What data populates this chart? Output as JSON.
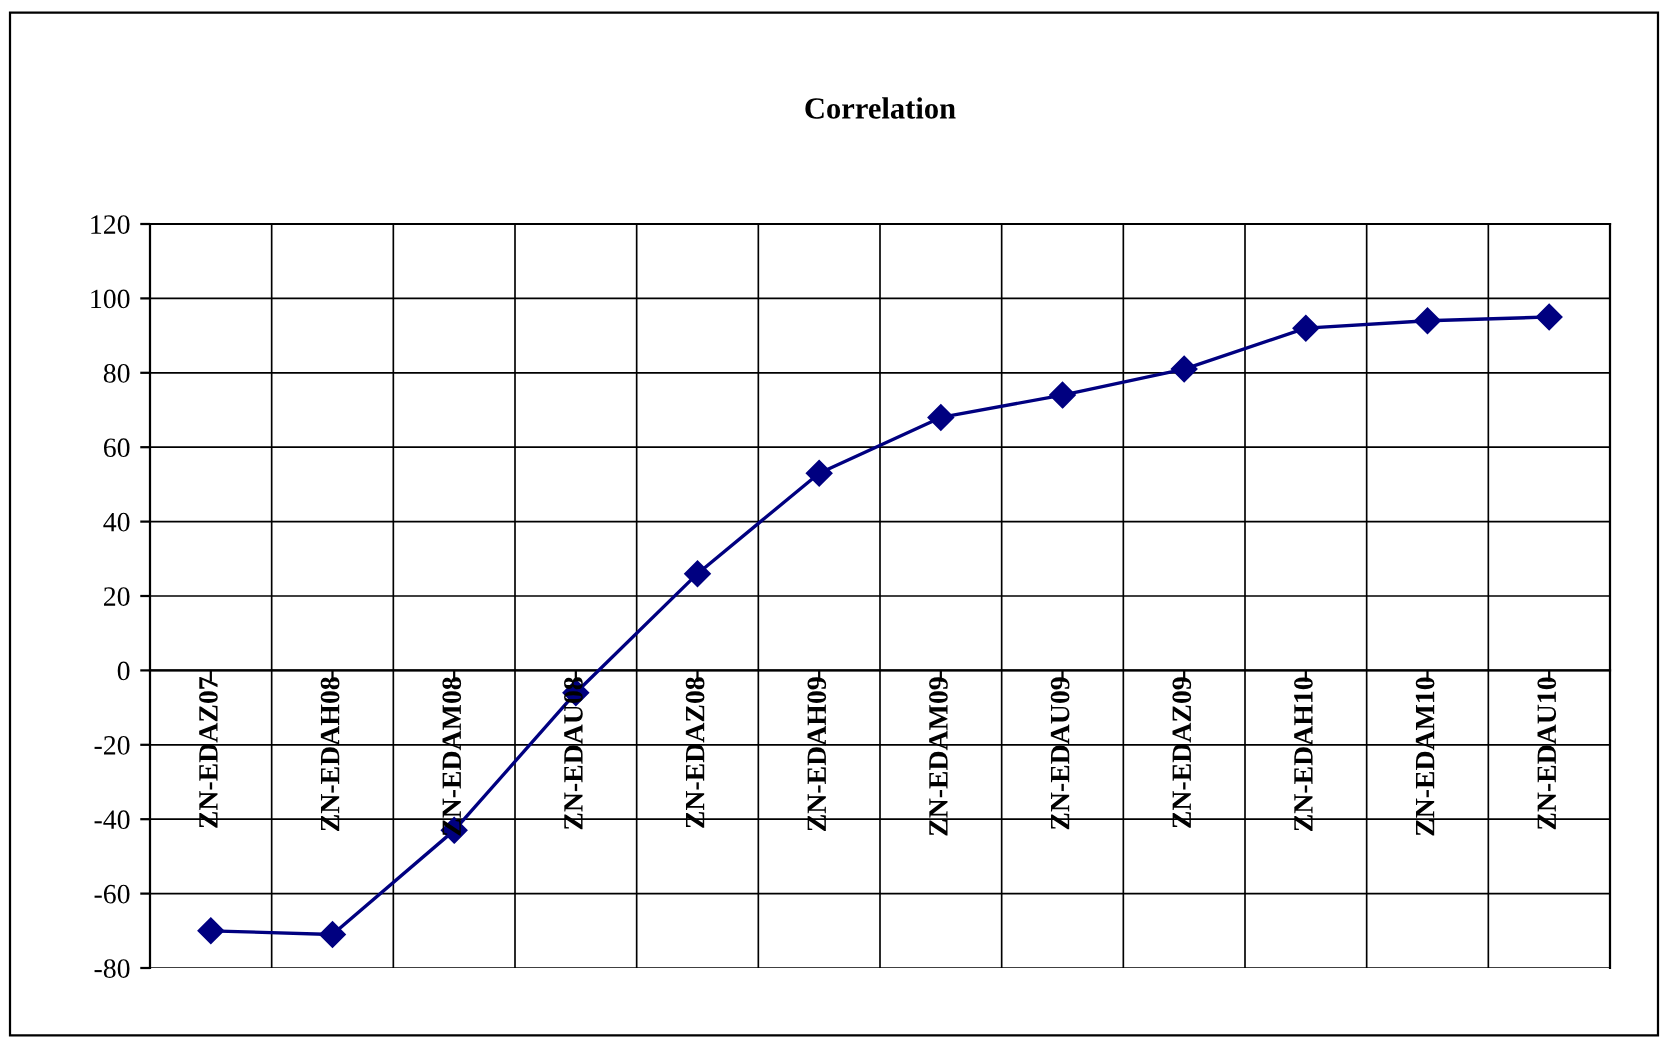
{
  "chart_data": {
    "type": "line",
    "title": "Correlation",
    "categories": [
      "ZN-EDAZ07",
      "ZN-EDAH08",
      "ZN-EDAM08",
      "ZN-EDAU08",
      "ZN-EDAZ08",
      "ZN-EDAH09",
      "ZN-EDAM09",
      "ZN-EDAU09",
      "ZN-EDAZ09",
      "ZN-EDAH10",
      "ZN-EDAM10",
      "ZN-EDAU10"
    ],
    "series": [
      {
        "color": "#000080",
        "values": [
          -70,
          -71,
          -43,
          -6,
          26,
          53,
          68,
          74,
          81,
          92,
          94,
          95
        ]
      }
    ],
    "ylim": [
      -80,
      120
    ],
    "yticks": [
      -80,
      -60,
      -40,
      -20,
      0,
      20,
      40,
      60,
      80,
      100,
      120
    ],
    "grid": true,
    "marker": "diamond",
    "line_style": "solid"
  }
}
